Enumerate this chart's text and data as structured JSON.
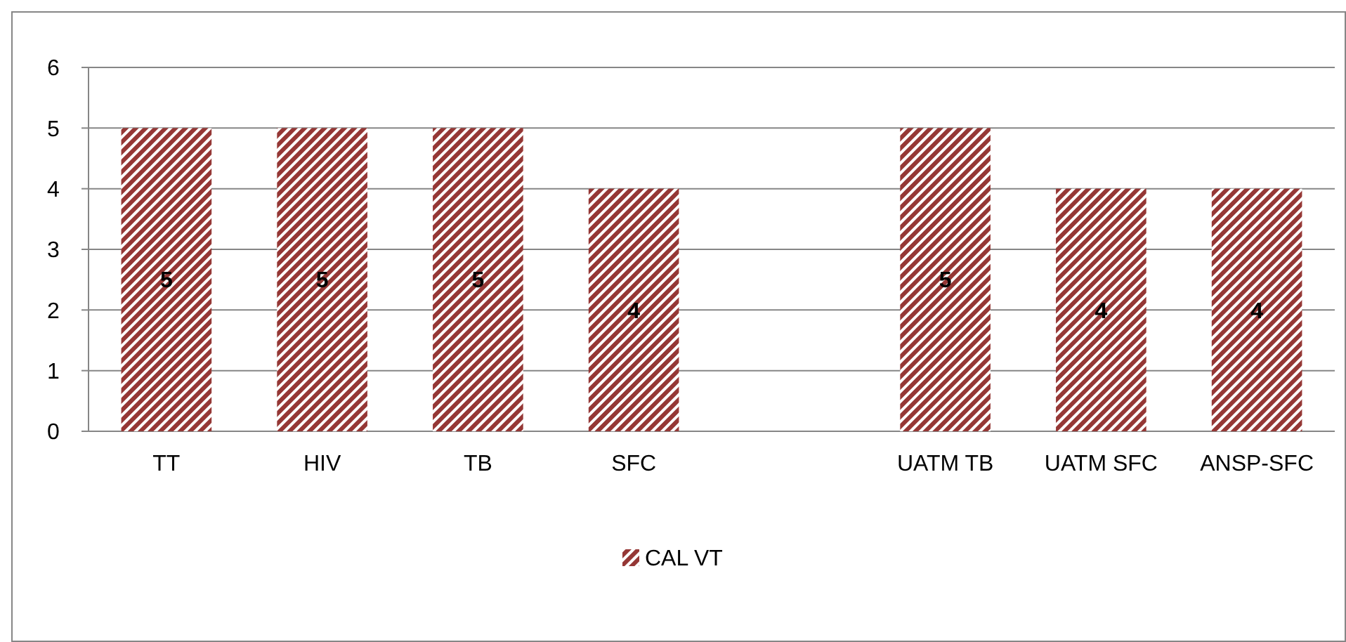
{
  "chart_data": {
    "type": "bar",
    "categories": [
      "TT",
      "HIV",
      "TB",
      "SFC",
      null,
      "UATM TB",
      "UATM SFC",
      "ANSP-SFC"
    ],
    "series": [
      {
        "name": "CAL VT",
        "color": "#953735",
        "values": [
          5,
          5,
          5,
          4,
          null,
          5,
          4,
          4
        ]
      }
    ],
    "ylim": [
      0,
      6
    ],
    "yticks": [
      0,
      1,
      2,
      3,
      4,
      5,
      6
    ],
    "grid": "y",
    "legend": "bottom",
    "data_labels": true
  }
}
